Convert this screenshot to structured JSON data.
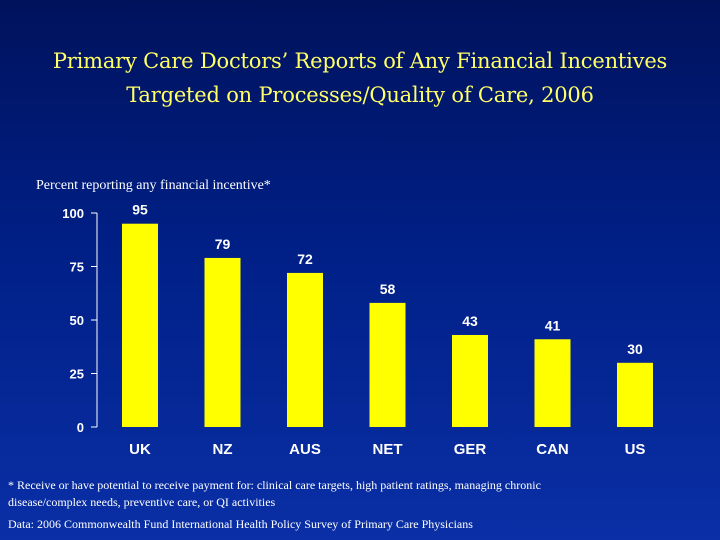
{
  "title_line1": "Primary Care Doctors’ Reports of Any Financial Incentives",
  "title_line2": "Targeted on Processes/Quality of Care, 2006",
  "footnote": "* Receive or have potential to receive payment for: clinical care  targets, high patient ratings, managing chronic disease/complex needs, preventive care, or QI activities",
  "source": "Data: 2006 Commonwealth Fund International Health Policy Survey of Primary Care Physicians",
  "colors": {
    "bar": "#ffff00",
    "title": "#ffff66",
    "text": "#ffffff"
  },
  "chart_data": {
    "type": "bar",
    "title": "",
    "ylabel": "Percent reporting any financial incentive*",
    "xlabel": "",
    "categories": [
      "UK",
      "NZ",
      "AUS",
      "NET",
      "GER",
      "CAN",
      "US"
    ],
    "values": [
      95,
      79,
      72,
      58,
      43,
      41,
      30
    ],
    "ylim": [
      0,
      100
    ],
    "yticks": [
      0,
      25,
      50,
      75,
      100
    ],
    "grid": false,
    "data_labels": true
  }
}
